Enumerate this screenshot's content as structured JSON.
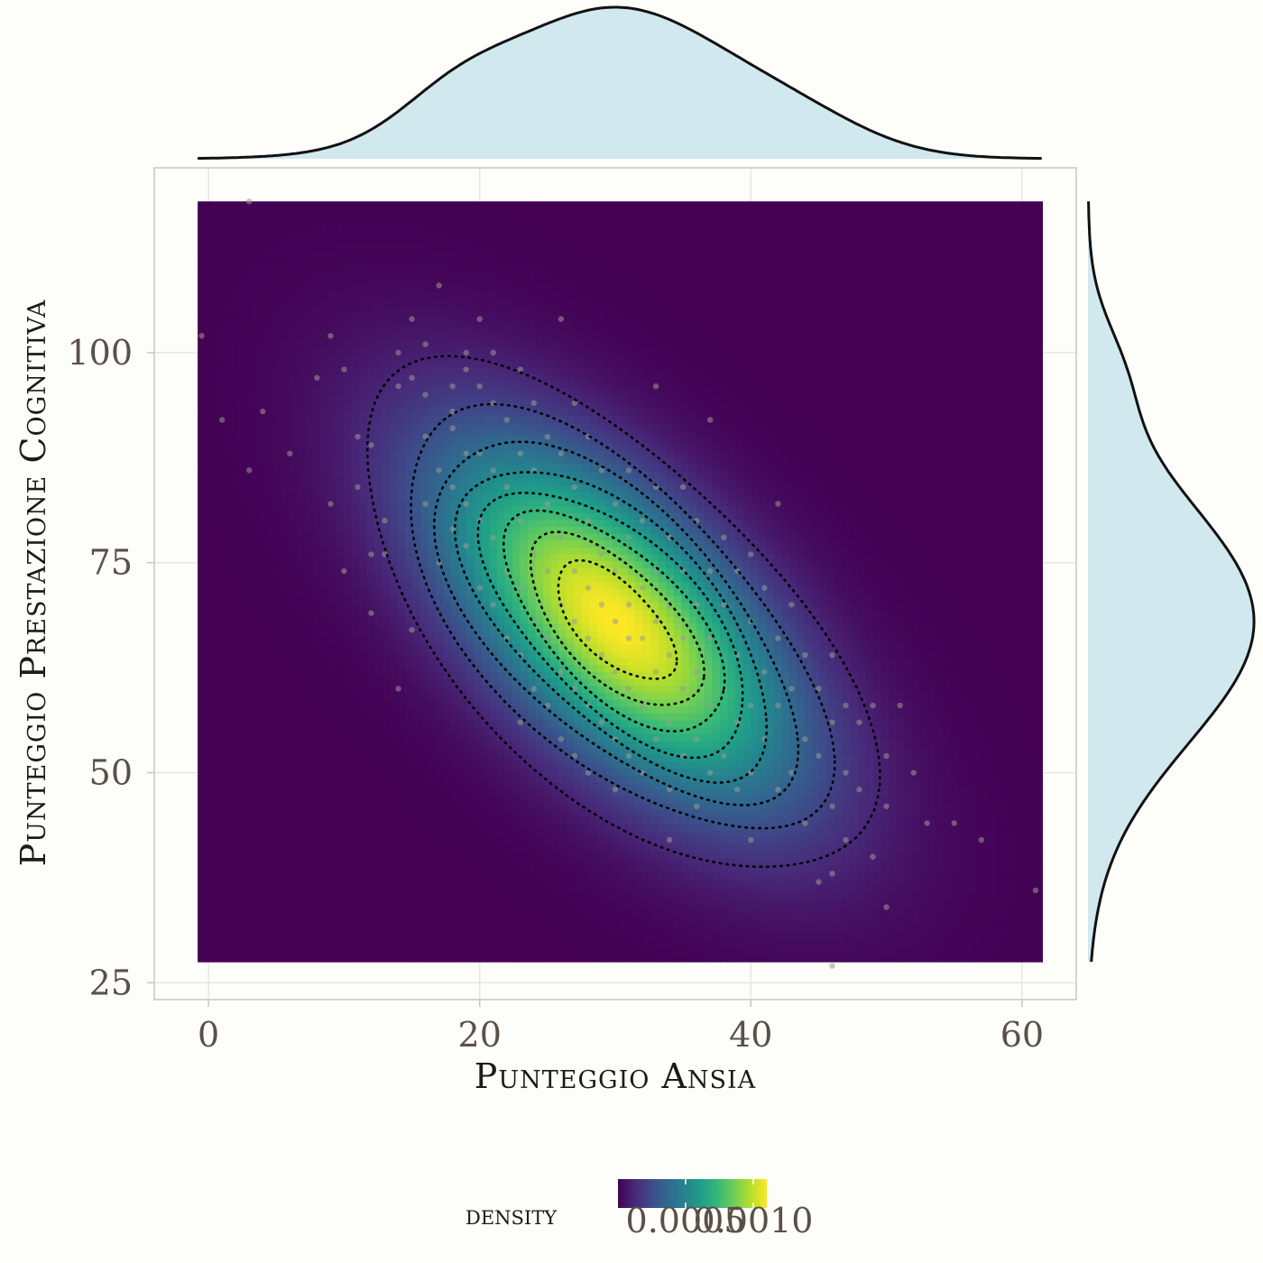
{
  "chart_data": {
    "type": "heatmap",
    "subtype": "2d-density-with-marginals",
    "xlabel": "Punteggio Ansia",
    "ylabel": "Punteggio Prestazione Cognitiva",
    "xlim": [
      -4,
      64
    ],
    "ylim": [
      23,
      122
    ],
    "density_x_range": [
      -0.8,
      61.5
    ],
    "density_y_range": [
      27.5,
      118
    ],
    "x_ticks": [
      0,
      20,
      40,
      60
    ],
    "y_ticks": [
      25,
      50,
      75,
      100
    ],
    "x_tick_labels": [
      "0",
      "20",
      "40",
      "60"
    ],
    "y_tick_labels": [
      "25",
      "50",
      "75",
      "100"
    ],
    "grid": true,
    "colormap": "viridis",
    "legend": {
      "title": "density",
      "placement": "bottom",
      "range": [
        0.0,
        0.0011
      ],
      "ticks": [
        0.0005,
        0.001
      ],
      "tick_labels": [
        "0.0005",
        "0.0010"
      ]
    },
    "density_peak": {
      "x": 30,
      "y": 68,
      "value": 0.0011
    },
    "contours": {
      "style": "dotted",
      "color": "#000000",
      "levels": 8
    },
    "marginals": {
      "top": "x-density",
      "right": "y-density",
      "fill": "#d1e8ef",
      "line": "#111111"
    },
    "colors": {
      "background": "#fdfdf9",
      "points": "#9a9a92",
      "grid": "#e6e6e2",
      "panel_border": "#c6c6c2"
    },
    "scatter_points": [
      [
        3,
        118
      ],
      [
        1,
        92
      ],
      [
        -0.5,
        102
      ],
      [
        3,
        86
      ],
      [
        4,
        93
      ],
      [
        6,
        88
      ],
      [
        8,
        97
      ],
      [
        9,
        102
      ],
      [
        10,
        74
      ],
      [
        11,
        90
      ],
      [
        11,
        84
      ],
      [
        12,
        89
      ],
      [
        12,
        76
      ],
      [
        12,
        69
      ],
      [
        13,
        80
      ],
      [
        13,
        76
      ],
      [
        14,
        96
      ],
      [
        14,
        100
      ],
      [
        15,
        104
      ],
      [
        15,
        97
      ],
      [
        16,
        101
      ],
      [
        16,
        95
      ],
      [
        16,
        90
      ],
      [
        16,
        82
      ],
      [
        17,
        108
      ],
      [
        17,
        86
      ],
      [
        17,
        75
      ],
      [
        18,
        96
      ],
      [
        18,
        93
      ],
      [
        18,
        91
      ],
      [
        18,
        84
      ],
      [
        18,
        79
      ],
      [
        19,
        100
      ],
      [
        19,
        98
      ],
      [
        19,
        88
      ],
      [
        19,
        82
      ],
      [
        19,
        77
      ],
      [
        20,
        104
      ],
      [
        20,
        96
      ],
      [
        20,
        88
      ],
      [
        20,
        80
      ],
      [
        20,
        72
      ],
      [
        21,
        100
      ],
      [
        21,
        94
      ],
      [
        21,
        86
      ],
      [
        21,
        78
      ],
      [
        21,
        70
      ],
      [
        22,
        92
      ],
      [
        22,
        84
      ],
      [
        22,
        74
      ],
      [
        22,
        66
      ],
      [
        23,
        98
      ],
      [
        23,
        88
      ],
      [
        23,
        80
      ],
      [
        23,
        72
      ],
      [
        23,
        64
      ],
      [
        23,
        56
      ],
      [
        24,
        94
      ],
      [
        24,
        86
      ],
      [
        24,
        76
      ],
      [
        24,
        68
      ],
      [
        24,
        60
      ],
      [
        25,
        90
      ],
      [
        25,
        82
      ],
      [
        25,
        74
      ],
      [
        25,
        66
      ],
      [
        25,
        58
      ],
      [
        26,
        104
      ],
      [
        26,
        88
      ],
      [
        26,
        78
      ],
      [
        26,
        70
      ],
      [
        26,
        62
      ],
      [
        26,
        54
      ],
      [
        27,
        94
      ],
      [
        27,
        84
      ],
      [
        27,
        74
      ],
      [
        27,
        68
      ],
      [
        27,
        60
      ],
      [
        27,
        52
      ],
      [
        28,
        90
      ],
      [
        28,
        80
      ],
      [
        28,
        72
      ],
      [
        28,
        66
      ],
      [
        28,
        58
      ],
      [
        28,
        50
      ],
      [
        29,
        86
      ],
      [
        29,
        76
      ],
      [
        29,
        70
      ],
      [
        29,
        64
      ],
      [
        29,
        56
      ],
      [
        30,
        82
      ],
      [
        30,
        74
      ],
      [
        30,
        68
      ],
      [
        30,
        62
      ],
      [
        30,
        54
      ],
      [
        30,
        48
      ],
      [
        31,
        86
      ],
      [
        31,
        78
      ],
      [
        31,
        70
      ],
      [
        31,
        66
      ],
      [
        31,
        60
      ],
      [
        31,
        52
      ],
      [
        32,
        80
      ],
      [
        32,
        72
      ],
      [
        32,
        66
      ],
      [
        32,
        58
      ],
      [
        32,
        50
      ],
      [
        33,
        96
      ],
      [
        33,
        84
      ],
      [
        33,
        74
      ],
      [
        33,
        68
      ],
      [
        33,
        62
      ],
      [
        33,
        54
      ],
      [
        34,
        78
      ],
      [
        34,
        70
      ],
      [
        34,
        64
      ],
      [
        34,
        56
      ],
      [
        34,
        48
      ],
      [
        35,
        84
      ],
      [
        35,
        74
      ],
      [
        35,
        66
      ],
      [
        35,
        60
      ],
      [
        35,
        52
      ],
      [
        36,
        80
      ],
      [
        36,
        70
      ],
      [
        36,
        62
      ],
      [
        36,
        54
      ],
      [
        36,
        46
      ],
      [
        37,
        92
      ],
      [
        37,
        74
      ],
      [
        37,
        66
      ],
      [
        37,
        58
      ],
      [
        37,
        50
      ],
      [
        38,
        78
      ],
      [
        38,
        70
      ],
      [
        38,
        60
      ],
      [
        38,
        52
      ],
      [
        39,
        74
      ],
      [
        39,
        64
      ],
      [
        39,
        56
      ],
      [
        39,
        48
      ],
      [
        40,
        76
      ],
      [
        40,
        68
      ],
      [
        40,
        58
      ],
      [
        40,
        50
      ],
      [
        40,
        42
      ],
      [
        41,
        72
      ],
      [
        41,
        62
      ],
      [
        41,
        54
      ],
      [
        42,
        82
      ],
      [
        42,
        66
      ],
      [
        42,
        58
      ],
      [
        42,
        48
      ],
      [
        43,
        70
      ],
      [
        43,
        60
      ],
      [
        43,
        50
      ],
      [
        44,
        64
      ],
      [
        44,
        54
      ],
      [
        44,
        44
      ],
      [
        45,
        60
      ],
      [
        45,
        52
      ],
      [
        46,
        64
      ],
      [
        46,
        56
      ],
      [
        46,
        46
      ],
      [
        46,
        38
      ],
      [
        47,
        58
      ],
      [
        47,
        50
      ],
      [
        47,
        42
      ],
      [
        48,
        56
      ],
      [
        48,
        48
      ],
      [
        49,
        58
      ],
      [
        49,
        40
      ],
      [
        50,
        52
      ],
      [
        50,
        34
      ],
      [
        50,
        46
      ],
      [
        51,
        58
      ],
      [
        52,
        50
      ],
      [
        53,
        44
      ],
      [
        55,
        44
      ],
      [
        57,
        42
      ],
      [
        61,
        36
      ],
      [
        46,
        27
      ],
      [
        45,
        37
      ],
      [
        34,
        42
      ],
      [
        14,
        60
      ],
      [
        15,
        67
      ],
      [
        10,
        98
      ],
      [
        9,
        82
      ]
    ]
  }
}
